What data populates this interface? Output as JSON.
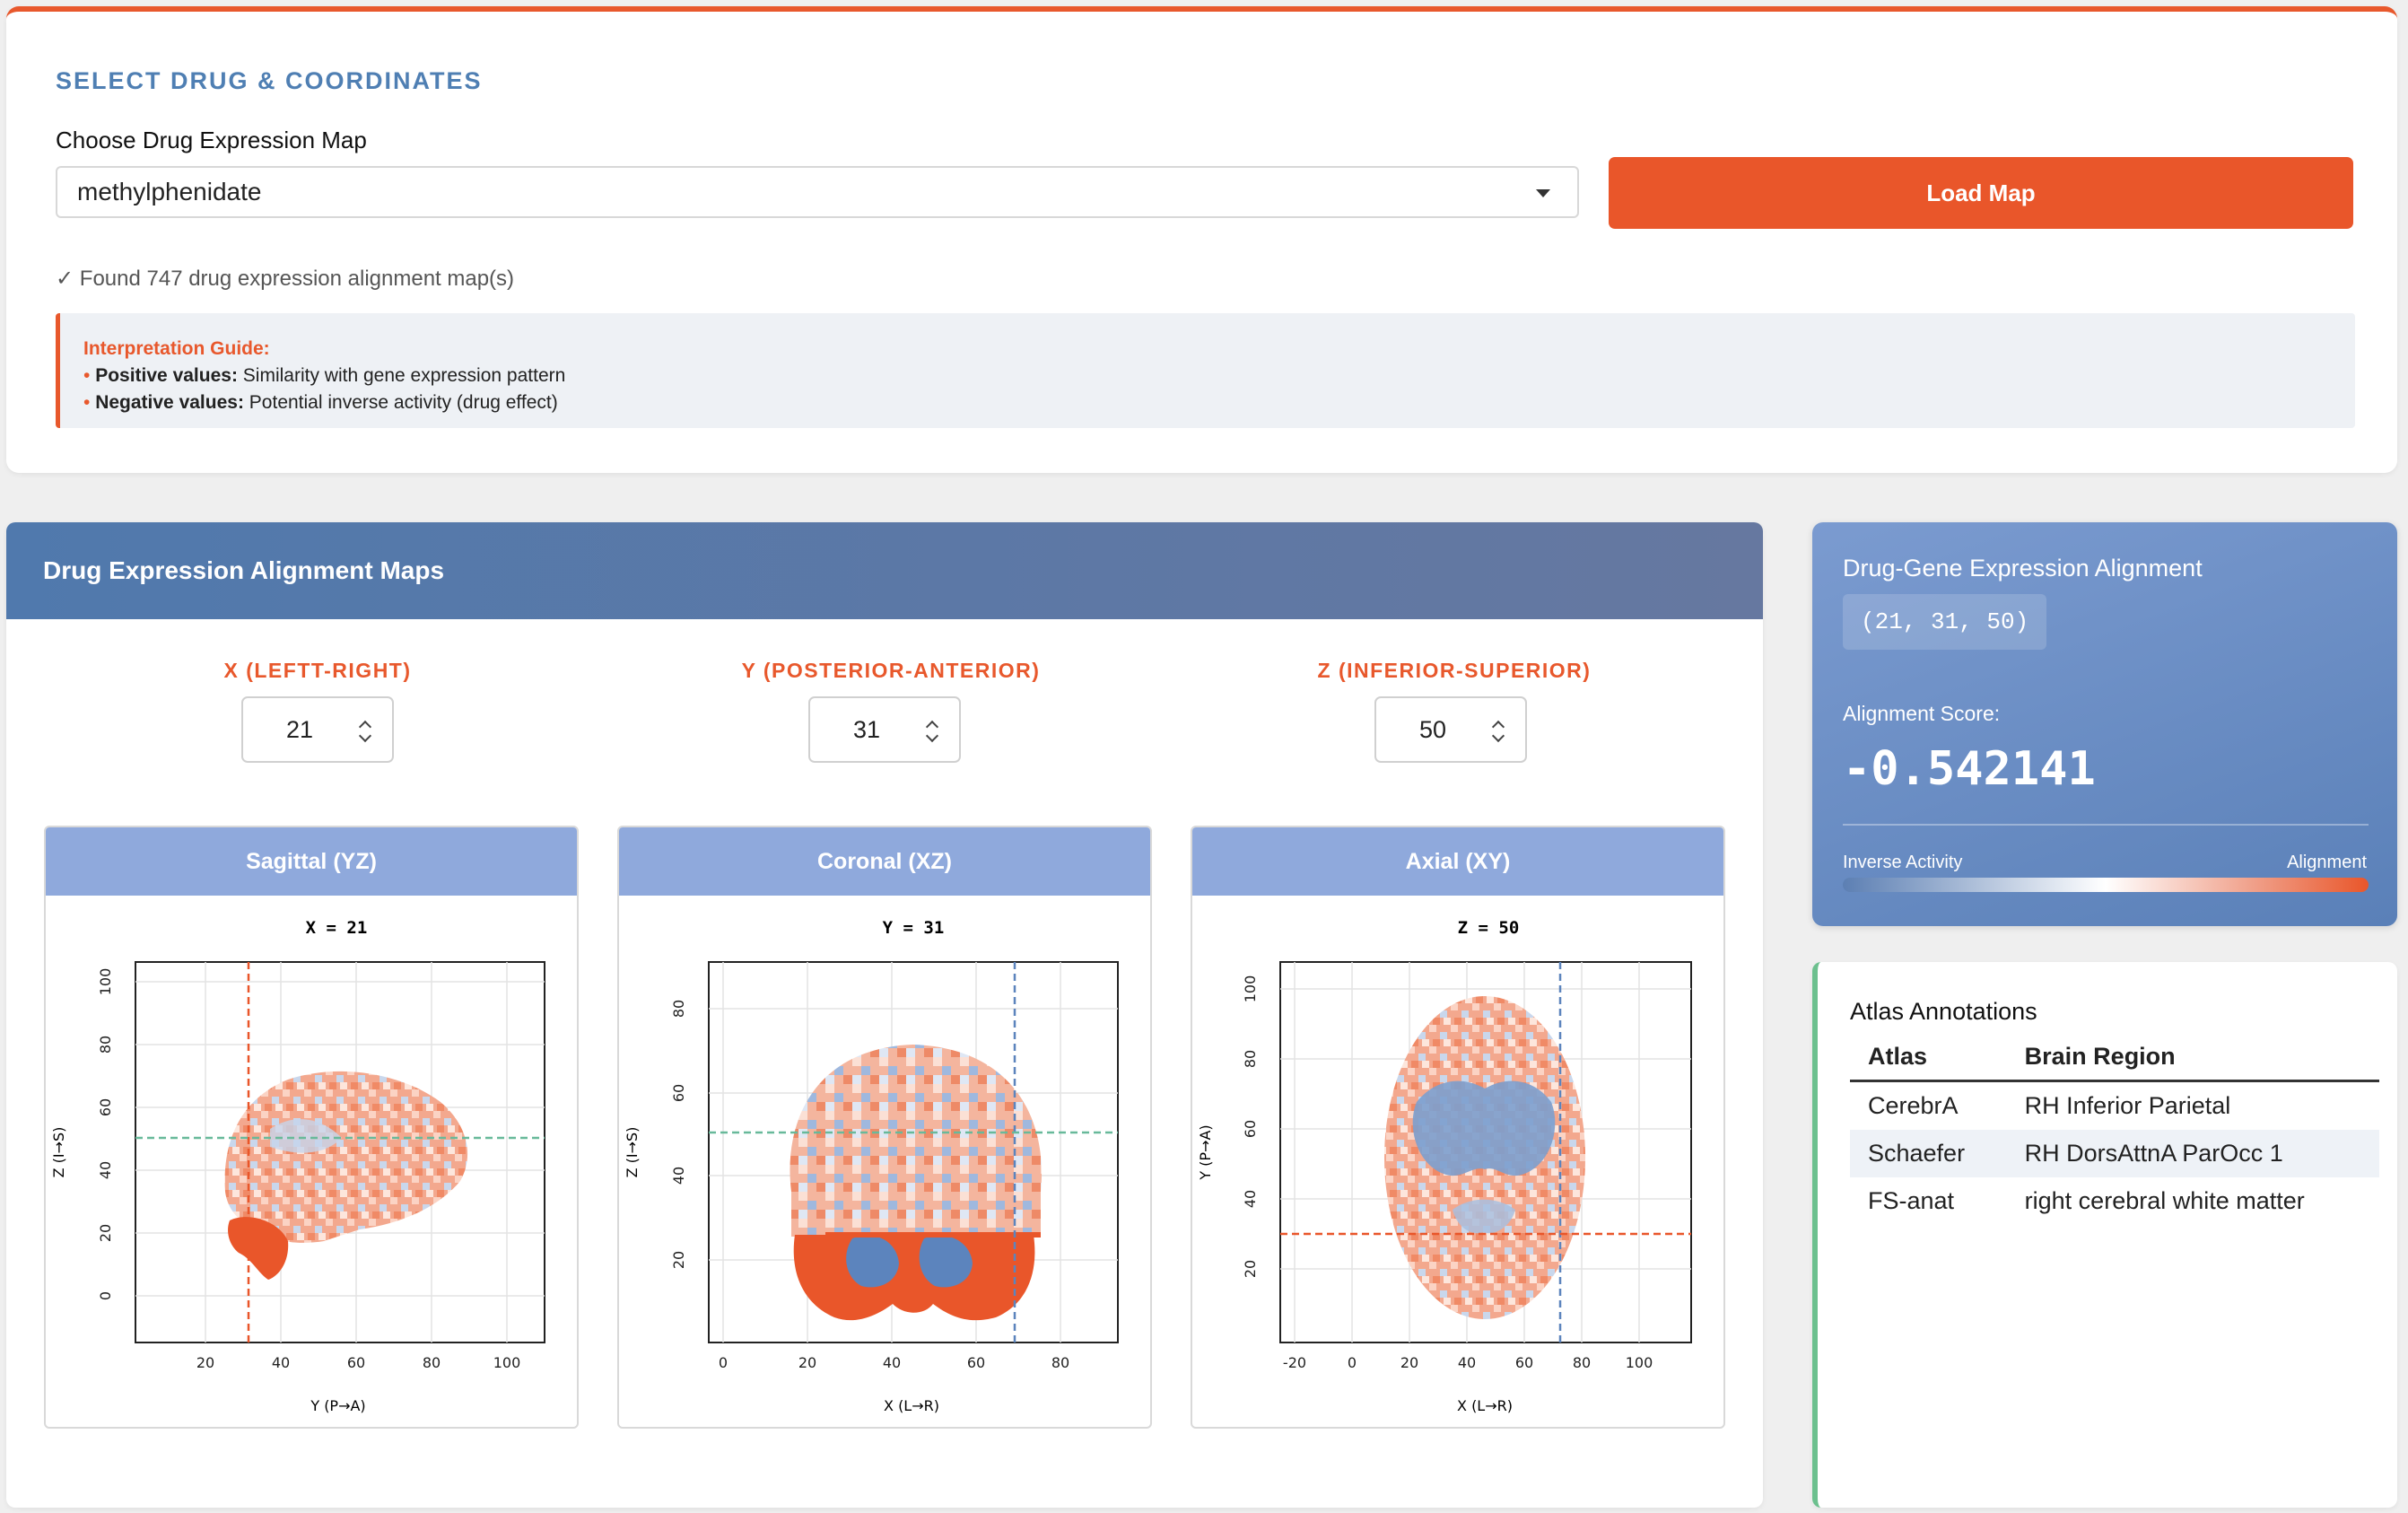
{
  "selector": {
    "section_title": "SELECT DRUG & COORDINATES",
    "choose_label": "Choose Drug Expression Map",
    "selected_drug": "methylphenidate",
    "load_button": "Load Map",
    "found_text": "✓ Found 747 drug expression alignment map(s)",
    "guide": {
      "title": "Interpretation Guide:",
      "positive_label": "Positive values:",
      "positive_text": "Similarity with gene expression pattern",
      "negative_label": "Negative values:",
      "negative_text": "Potential inverse activity (drug effect)"
    }
  },
  "maps": {
    "header": "Drug Expression Alignment Maps",
    "coords": [
      {
        "label": "X (LEFTT-RIGHT)",
        "value": "21"
      },
      {
        "label": "Y (POSTERIOR-ANTERIOR)",
        "value": "31"
      },
      {
        "label": "Z (INFERIOR-SUPERIOR)",
        "value": "50"
      }
    ],
    "views": [
      {
        "title": "Sagittal (YZ)",
        "plot_title": "X = 21",
        "xlabel": "Y (P→A)",
        "ylabel": "Z (I→S)",
        "xticks": [
          "20",
          "40",
          "60",
          "80",
          "100"
        ],
        "yticks": [
          "0",
          "20",
          "40",
          "60",
          "80",
          "100"
        ]
      },
      {
        "title": "Coronal (XZ)",
        "plot_title": "Y = 31",
        "xlabel": "X (L→R)",
        "ylabel": "Z (I→S)",
        "xticks": [
          "0",
          "20",
          "40",
          "60",
          "80"
        ],
        "yticks": [
          "20",
          "40",
          "60",
          "80"
        ]
      },
      {
        "title": "Axial (XY)",
        "plot_title": "Z = 50",
        "xlabel": "X (L→R)",
        "ylabel": "Y (P→A)",
        "xticks": [
          "-20",
          "0",
          "20",
          "40",
          "60",
          "80",
          "100"
        ],
        "yticks": [
          "20",
          "40",
          "60",
          "80",
          "100"
        ]
      }
    ]
  },
  "score": {
    "title": "Drug-Gene Expression Alignment",
    "coordinate": "(21, 31, 50)",
    "label": "Alignment Score:",
    "value": "-0.542141",
    "scale_left": "Inverse Activity",
    "scale_right": "Alignment"
  },
  "atlas": {
    "title": "Atlas Annotations",
    "headers": [
      "Atlas",
      "Brain Region"
    ],
    "rows": [
      {
        "atlas": "CerebrA",
        "region": "RH Inferior Parietal"
      },
      {
        "atlas": "Schaefer",
        "region": "RH DorsAttnA ParOcc 1"
      },
      {
        "atlas": "FS-anat",
        "region": "right cerebral white matter"
      }
    ]
  },
  "colors": {
    "accent": "#e9562a",
    "blue": "#5c7fb3",
    "view_header": "#8fa9dc",
    "positive": "#ef8a6a",
    "negative": "#6f93c6"
  }
}
